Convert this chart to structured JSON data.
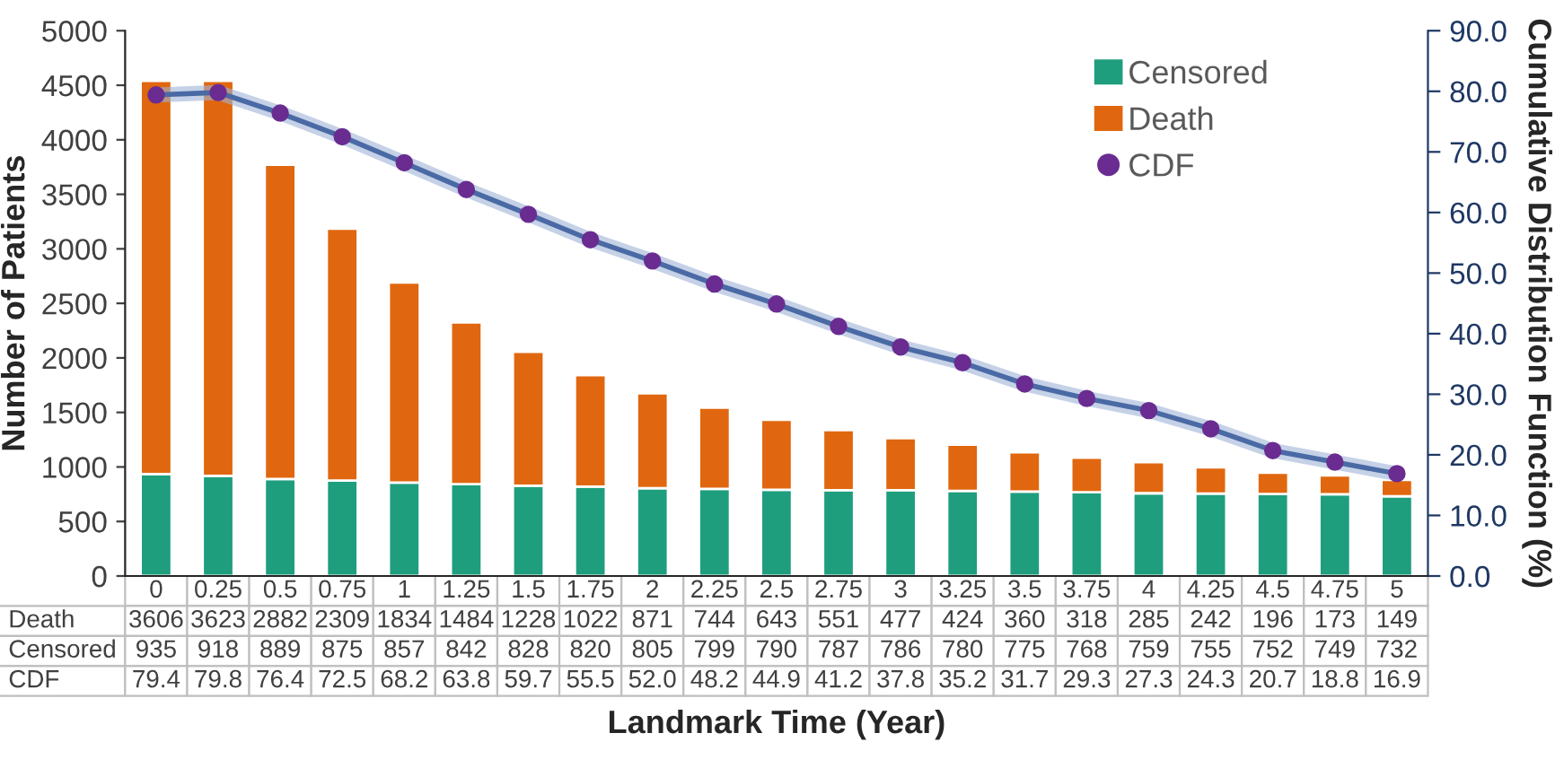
{
  "chart_data": {
    "type": "bar",
    "stacked": true,
    "xlabel": "Landmark Time (Year)",
    "ylabel": "Number of Patients",
    "y2label": "Cumulative Distribution Function (%)",
    "categories": [
      "0",
      "0.25",
      "0.5",
      "0.75",
      "1",
      "1.25",
      "1.5",
      "1.75",
      "2",
      "2.25",
      "2.5",
      "2.75",
      "3",
      "3.25",
      "3.5",
      "3.75",
      "4",
      "4.25",
      "4.5",
      "4.75",
      "5"
    ],
    "series": [
      {
        "name": "Censored",
        "color": "#1f9e7e",
        "values": [
          935,
          918,
          889,
          875,
          857,
          842,
          828,
          820,
          805,
          799,
          790,
          787,
          786,
          780,
          775,
          768,
          759,
          755,
          752,
          749,
          732
        ],
        "value_labels": [
          "935",
          "918",
          "889",
          "875",
          "857",
          "842",
          "828",
          "820",
          "805",
          "799",
          "790",
          "787",
          "786",
          "780",
          "775",
          "768",
          "759",
          "755",
          "752",
          "749",
          "732"
        ]
      },
      {
        "name": "Death",
        "color": "#e0670f",
        "values": [
          3606,
          3623,
          2882,
          2309,
          1834,
          1484,
          1228,
          1022,
          871,
          744,
          643,
          551,
          477,
          424,
          360,
          318,
          285,
          242,
          196,
          173,
          149
        ],
        "value_labels": [
          "3606",
          "3623",
          "2882",
          "2309",
          "1834",
          "1484",
          "1228",
          "1022",
          "871",
          "744",
          "643",
          "551",
          "477",
          "424",
          "360",
          "318",
          "285",
          "242",
          "196",
          "173",
          "149"
        ]
      },
      {
        "name": "CDF",
        "type": "line",
        "axis": "y2",
        "color": "#6a2c91",
        "marker": "circle",
        "values": [
          79.4,
          79.8,
          76.4,
          72.5,
          68.2,
          63.8,
          59.7,
          55.5,
          52.0,
          48.2,
          44.9,
          41.2,
          37.8,
          35.2,
          31.7,
          29.3,
          27.3,
          24.3,
          20.7,
          18.8,
          16.9
        ],
        "value_labels": [
          "79.4",
          "79.8",
          "76.4",
          "72.5",
          "68.2",
          "63.8",
          "59.7",
          "55.5",
          "52.0",
          "48.2",
          "44.9",
          "41.2",
          "37.8",
          "35.2",
          "31.7",
          "29.3",
          "27.3",
          "24.3",
          "20.7",
          "18.8",
          "16.9"
        ]
      }
    ],
    "ylim": [
      0,
      5000
    ],
    "yticks": [
      0,
      500,
      1000,
      1500,
      2000,
      2500,
      3000,
      3500,
      4000,
      4500,
      5000
    ],
    "y2lim": [
      0,
      90
    ],
    "y2ticks": [
      {
        "value": 0,
        "label": "0.0"
      },
      {
        "value": 10,
        "label": "10.0"
      },
      {
        "value": 20,
        "label": "20.0"
      },
      {
        "value": 30,
        "label": "30.0"
      },
      {
        "value": 40,
        "label": "40.0"
      },
      {
        "value": 50,
        "label": "50.0"
      },
      {
        "value": 60,
        "label": "60.0"
      },
      {
        "value": 70,
        "label": "70.0"
      },
      {
        "value": 80,
        "label": "80.0"
      },
      {
        "value": 90,
        "label": "90.0"
      }
    ],
    "legend": "top right",
    "grid": false
  }
}
